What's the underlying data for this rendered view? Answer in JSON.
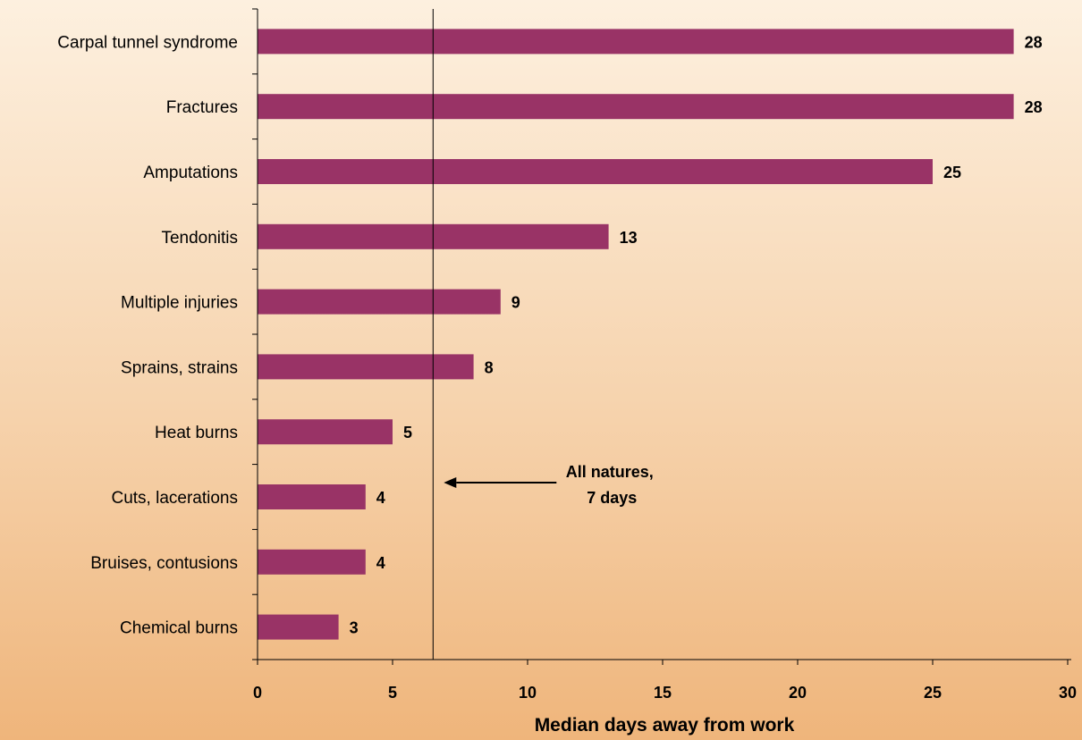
{
  "chart_data": {
    "type": "bar",
    "orientation": "horizontal",
    "categories": [
      "Carpal tunnel syndrome",
      "Fractures",
      "Amputations",
      "Tendonitis",
      "Multiple injuries",
      "Sprains, strains",
      "Heat burns",
      "Cuts, lacerations",
      "Bruises, contusions",
      "Chemical burns"
    ],
    "values": [
      28,
      28,
      25,
      13,
      9,
      8,
      5,
      4,
      4,
      3
    ],
    "value_labels": [
      "28",
      "28",
      "25",
      "13",
      "9",
      "8",
      "5",
      "4",
      "4",
      "3"
    ],
    "xlabel": "Median days away from work",
    "xlim": [
      0,
      30
    ],
    "xticks": [
      0,
      5,
      10,
      15,
      20,
      25,
      30
    ],
    "xtick_labels": [
      "0",
      "5",
      "10",
      "15",
      "20",
      "25",
      "30"
    ],
    "reference_line": {
      "value": 6.5,
      "label_lines": [
        "All natures,",
        "7 days"
      ]
    },
    "grid": false,
    "legend": "none",
    "bar_color": "#993366"
  }
}
